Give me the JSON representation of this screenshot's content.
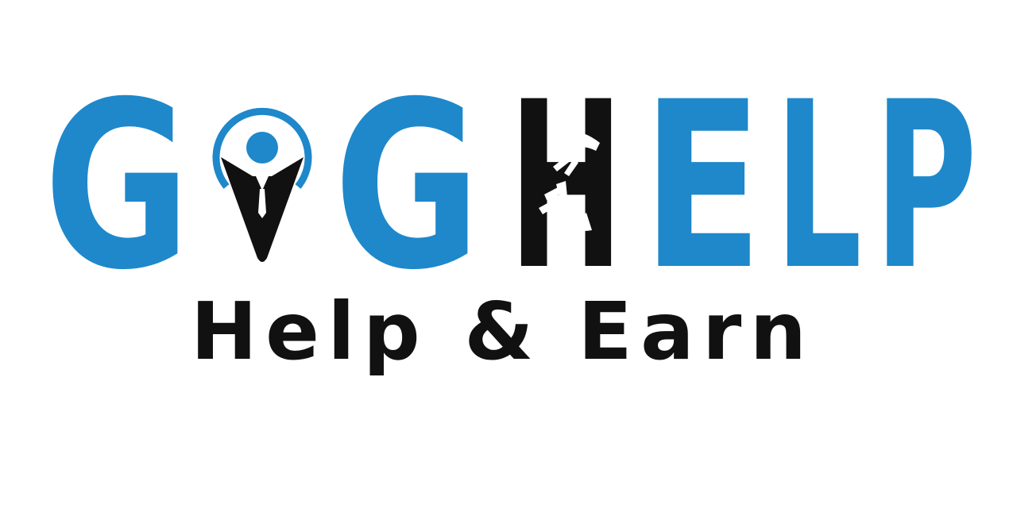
{
  "logo": {
    "letters": [
      "G",
      "G",
      "H",
      "E",
      "L",
      "P"
    ]
  },
  "tagline": "Help & Earn"
}
